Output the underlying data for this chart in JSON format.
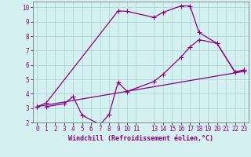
{
  "xlabel": "Windchill (Refroidissement éolien,°C)",
  "xlim": [
    -0.5,
    23.5
  ],
  "ylim": [
    2,
    10.4
  ],
  "xticks": [
    0,
    1,
    2,
    3,
    4,
    5,
    6,
    7,
    8,
    9,
    10,
    11,
    13,
    14,
    15,
    16,
    17,
    18,
    19,
    20,
    21,
    22,
    23
  ],
  "yticks": [
    2,
    3,
    4,
    5,
    6,
    7,
    8,
    9,
    10
  ],
  "bg_color": "#d4f0f0",
  "line_color": "#880088",
  "grid_color": "#b0d8d8",
  "line1_x": [
    0,
    1,
    9,
    10,
    13,
    14,
    16,
    17,
    18,
    20,
    22,
    23
  ],
  "line1_y": [
    3.1,
    3.35,
    9.75,
    9.72,
    9.3,
    9.65,
    10.1,
    10.1,
    8.25,
    7.5,
    5.5,
    5.65
  ],
  "line2_x": [
    0,
    23
  ],
  "line2_y": [
    3.1,
    5.55
  ],
  "line3_x": [
    1,
    3,
    4,
    5,
    7,
    8,
    9,
    10,
    13,
    14,
    16,
    17,
    18,
    20,
    22,
    23
  ],
  "line3_y": [
    3.1,
    3.3,
    3.8,
    2.5,
    1.85,
    2.55,
    4.8,
    4.15,
    4.85,
    5.35,
    6.55,
    7.25,
    7.75,
    7.5,
    5.5,
    5.65
  ],
  "marker": "+",
  "markersize": 4,
  "linewidth": 0.9,
  "tick_fontsize": 5.5,
  "xlabel_fontsize": 6.0
}
